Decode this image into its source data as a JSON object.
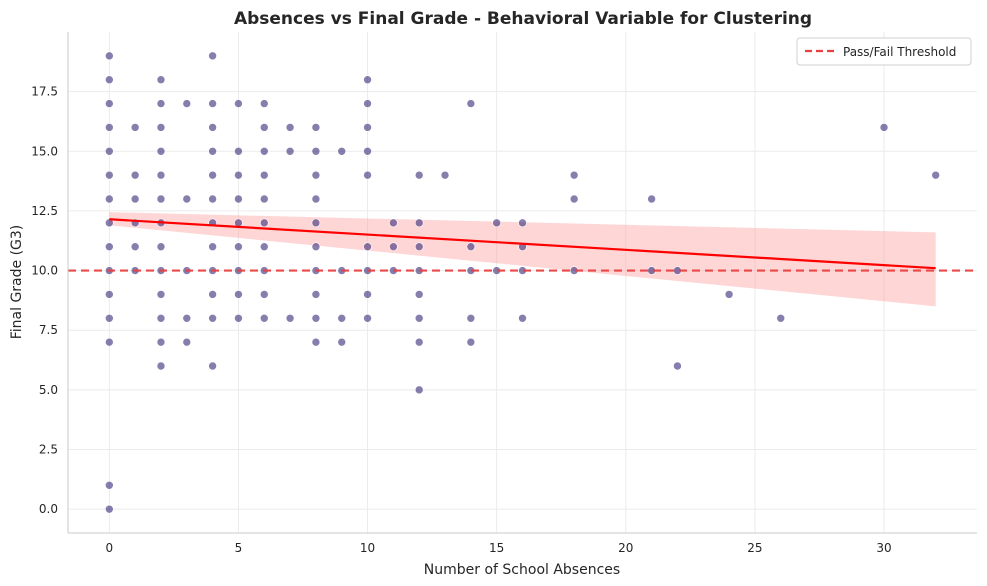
{
  "chart_data": {
    "type": "scatter",
    "title": "Absences vs Final Grade - Behavioral Variable for Clustering",
    "xlabel": "Number of School Absences",
    "ylabel": "Final Grade (G3)",
    "xlim": [
      -1.6,
      33.6
    ],
    "ylim": [
      -1.0,
      20.0
    ],
    "xticks": [
      0,
      5,
      10,
      15,
      20,
      25,
      30
    ],
    "xtick_labels": [
      "0",
      "5",
      "10",
      "15",
      "20",
      "25",
      "30"
    ],
    "yticks": [
      0.0,
      2.5,
      5.0,
      7.5,
      10.0,
      12.5,
      15.0,
      17.5
    ],
    "ytick_labels": [
      "0.0",
      "2.5",
      "5.0",
      "7.5",
      "10.0",
      "12.5",
      "15.0",
      "17.5"
    ],
    "grid": true,
    "legend_position": "top-right",
    "colors": {
      "points": "#3f2f7a",
      "regression_line": "#ff0000",
      "confidence_band": "#ff9999",
      "threshold": "#e84040"
    },
    "series": [
      {
        "kind": "scatter",
        "points": [
          [
            0,
            19
          ],
          [
            0,
            18
          ],
          [
            0,
            17
          ],
          [
            0,
            16
          ],
          [
            0,
            15
          ],
          [
            0,
            14
          ],
          [
            0,
            13
          ],
          [
            0,
            12
          ],
          [
            0,
            11
          ],
          [
            0,
            10
          ],
          [
            0,
            9
          ],
          [
            0,
            8
          ],
          [
            0,
            7
          ],
          [
            0,
            1
          ],
          [
            0,
            0
          ],
          [
            1,
            16
          ],
          [
            1,
            14
          ],
          [
            1,
            13
          ],
          [
            1,
            12
          ],
          [
            1,
            11
          ],
          [
            1,
            10
          ],
          [
            2,
            18
          ],
          [
            2,
            17
          ],
          [
            2,
            16
          ],
          [
            2,
            15
          ],
          [
            2,
            14
          ],
          [
            2,
            13
          ],
          [
            2,
            12
          ],
          [
            2,
            11
          ],
          [
            2,
            10
          ],
          [
            2,
            9
          ],
          [
            2,
            8
          ],
          [
            2,
            7
          ],
          [
            2,
            6
          ],
          [
            3,
            17
          ],
          [
            3,
            13
          ],
          [
            3,
            10
          ],
          [
            3,
            8
          ],
          [
            3,
            7
          ],
          [
            4,
            19
          ],
          [
            4,
            17
          ],
          [
            4,
            16
          ],
          [
            4,
            15
          ],
          [
            4,
            14
          ],
          [
            4,
            13
          ],
          [
            4,
            12
          ],
          [
            4,
            11
          ],
          [
            4,
            10
          ],
          [
            4,
            9
          ],
          [
            4,
            8
          ],
          [
            4,
            6
          ],
          [
            5,
            17
          ],
          [
            5,
            15
          ],
          [
            5,
            14
          ],
          [
            5,
            13
          ],
          [
            5,
            12
          ],
          [
            5,
            11
          ],
          [
            5,
            10
          ],
          [
            5,
            9
          ],
          [
            5,
            8
          ],
          [
            6,
            17
          ],
          [
            6,
            16
          ],
          [
            6,
            15
          ],
          [
            6,
            14
          ],
          [
            6,
            13
          ],
          [
            6,
            12
          ],
          [
            6,
            11
          ],
          [
            6,
            10
          ],
          [
            6,
            9
          ],
          [
            6,
            8
          ],
          [
            7,
            16
          ],
          [
            7,
            15
          ],
          [
            7,
            8
          ],
          [
            8,
            16
          ],
          [
            8,
            15
          ],
          [
            8,
            14
          ],
          [
            8,
            13
          ],
          [
            8,
            12
          ],
          [
            8,
            11
          ],
          [
            8,
            10
          ],
          [
            8,
            9
          ],
          [
            8,
            8
          ],
          [
            8,
            7
          ],
          [
            9,
            15
          ],
          [
            9,
            10
          ],
          [
            9,
            8
          ],
          [
            9,
            7
          ],
          [
            10,
            18
          ],
          [
            10,
            17
          ],
          [
            10,
            16
          ],
          [
            10,
            15
          ],
          [
            10,
            14
          ],
          [
            10,
            11
          ],
          [
            10,
            10
          ],
          [
            10,
            9
          ],
          [
            10,
            8
          ],
          [
            11,
            12
          ],
          [
            11,
            11
          ],
          [
            11,
            10
          ],
          [
            12,
            14
          ],
          [
            12,
            12
          ],
          [
            12,
            11
          ],
          [
            12,
            10
          ],
          [
            12,
            9
          ],
          [
            12,
            8
          ],
          [
            12,
            7
          ],
          [
            12,
            5
          ],
          [
            13,
            14
          ],
          [
            14,
            17
          ],
          [
            14,
            11
          ],
          [
            14,
            10
          ],
          [
            14,
            8
          ],
          [
            14,
            7
          ],
          [
            15,
            12
          ],
          [
            15,
            10
          ],
          [
            16,
            12
          ],
          [
            16,
            11
          ],
          [
            16,
            10
          ],
          [
            16,
            8
          ],
          [
            18,
            14
          ],
          [
            18,
            13
          ],
          [
            18,
            10
          ],
          [
            21,
            13
          ],
          [
            21,
            10
          ],
          [
            22,
            10
          ],
          [
            22,
            6
          ],
          [
            24,
            9
          ],
          [
            26,
            8
          ],
          [
            30,
            16
          ],
          [
            32,
            14
          ]
        ]
      },
      {
        "kind": "regression",
        "x": [
          0,
          32
        ],
        "y": [
          12.15,
          10.1
        ],
        "ci_lower": [
          11.9,
          8.5
        ],
        "ci_upper": [
          12.45,
          11.6
        ]
      },
      {
        "kind": "hline",
        "name": "Pass/Fail Threshold",
        "y": 10
      }
    ]
  }
}
